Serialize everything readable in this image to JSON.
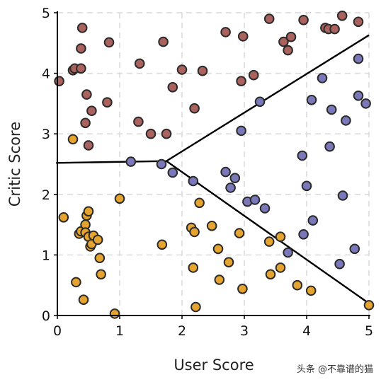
{
  "chart_data": {
    "type": "scatter",
    "xlabel": "User Score",
    "ylabel": "Critic Score",
    "xlim": [
      0,
      5
    ],
    "ylim": [
      0,
      5
    ],
    "xticks": [
      "0",
      "1",
      "2",
      "3",
      "4",
      "5"
    ],
    "yticks": [
      "0",
      "1",
      "2",
      "3",
      "4",
      "5"
    ],
    "grid": true,
    "series": [
      {
        "color": "#a9625e",
        "points": [
          [
            0.03,
            3.87
          ],
          [
            0.25,
            4.05
          ],
          [
            0.28,
            4.08
          ],
          [
            0.38,
            4.08
          ],
          [
            0.38,
            4.41
          ],
          [
            0.4,
            4.75
          ],
          [
            0.47,
            3.65
          ],
          [
            0.45,
            3.18
          ],
          [
            0.5,
            2.81
          ],
          [
            0.55,
            3.38
          ],
          [
            0.8,
            3.52
          ],
          [
            0.83,
            4.51
          ],
          [
            1.32,
            4.16
          ],
          [
            1.3,
            3.2
          ],
          [
            1.5,
            3.0
          ],
          [
            1.7,
            4.52
          ],
          [
            1.75,
            3.0
          ],
          [
            1.85,
            3.77
          ],
          [
            2.0,
            4.06
          ],
          [
            2.2,
            3.42
          ],
          [
            2.33,
            4.04
          ],
          [
            2.7,
            4.68
          ],
          [
            2.98,
            4.61
          ],
          [
            2.95,
            3.87
          ],
          [
            3.15,
            3.97
          ],
          [
            3.4,
            4.9
          ],
          [
            3.63,
            4.52
          ],
          [
            3.7,
            4.38
          ],
          [
            3.75,
            4.6
          ],
          [
            3.95,
            4.88
          ],
          [
            4.3,
            4.75
          ],
          [
            4.35,
            4.73
          ],
          [
            4.45,
            4.73
          ],
          [
            4.57,
            4.95
          ],
          [
            4.83,
            4.85
          ]
        ]
      },
      {
        "color": "#7a78b8",
        "points": [
          [
            1.18,
            2.54
          ],
          [
            1.67,
            2.5
          ],
          [
            1.85,
            2.36
          ],
          [
            2.18,
            2.22
          ],
          [
            2.7,
            2.37
          ],
          [
            2.78,
            2.11
          ],
          [
            2.85,
            2.27
          ],
          [
            2.95,
            3.05
          ],
          [
            3.05,
            1.88
          ],
          [
            3.17,
            1.91
          ],
          [
            3.25,
            3.53
          ],
          [
            3.33,
            1.77
          ],
          [
            3.7,
            1.04
          ],
          [
            3.93,
            2.64
          ],
          [
            3.95,
            1.34
          ],
          [
            4.0,
            2.14
          ],
          [
            4.08,
            3.56
          ],
          [
            4.1,
            1.57
          ],
          [
            4.25,
            3.92
          ],
          [
            4.37,
            2.79
          ],
          [
            4.4,
            3.4
          ],
          [
            4.53,
            0.85
          ],
          [
            4.58,
            1.98
          ],
          [
            4.63,
            3.22
          ],
          [
            4.77,
            1.1
          ],
          [
            4.83,
            4.24
          ],
          [
            4.83,
            3.63
          ],
          [
            4.95,
            3.5
          ]
        ]
      },
      {
        "color": "#e5a32f",
        "points": [
          [
            0.1,
            1.62
          ],
          [
            0.25,
            2.91
          ],
          [
            0.3,
            0.55
          ],
          [
            0.35,
            1.35
          ],
          [
            0.38,
            1.39
          ],
          [
            0.42,
            0.26
          ],
          [
            0.45,
            1.5
          ],
          [
            0.45,
            1.37
          ],
          [
            0.47,
            1.65
          ],
          [
            0.5,
            1.72
          ],
          [
            0.5,
            1.3
          ],
          [
            0.53,
            1.14
          ],
          [
            0.55,
            1.18
          ],
          [
            0.58,
            1.32
          ],
          [
            0.65,
            1.25
          ],
          [
            0.68,
            0.95
          ],
          [
            0.7,
            0.68
          ],
          [
            0.92,
            0.03
          ],
          [
            1.0,
            1.93
          ],
          [
            1.68,
            1.17
          ],
          [
            2.15,
            1.45
          ],
          [
            2.18,
            0.79
          ],
          [
            2.2,
            1.38
          ],
          [
            2.22,
            0.14
          ],
          [
            2.28,
            1.86
          ],
          [
            2.48,
            1.48
          ],
          [
            2.58,
            1.1
          ],
          [
            2.6,
            0.59
          ],
          [
            2.75,
            0.88
          ],
          [
            2.92,
            1.36
          ],
          [
            2.97,
            0.44
          ],
          [
            3.4,
            1.22
          ],
          [
            3.42,
            0.68
          ],
          [
            3.58,
            0.79
          ],
          [
            3.58,
            1.3
          ],
          [
            3.85,
            0.5
          ],
          [
            4.07,
            0.41
          ],
          [
            5.0,
            0.17
          ]
        ]
      }
    ],
    "boundaries": [
      {
        "points": [
          [
            -0.02,
            2.52
          ],
          [
            1.75,
            2.55
          ],
          [
            5.0,
            4.63
          ]
        ]
      },
      {
        "points": [
          [
            1.75,
            2.55
          ],
          [
            5.0,
            0.2
          ]
        ]
      }
    ]
  },
  "watermark": "头条 @不靠谱的猫"
}
